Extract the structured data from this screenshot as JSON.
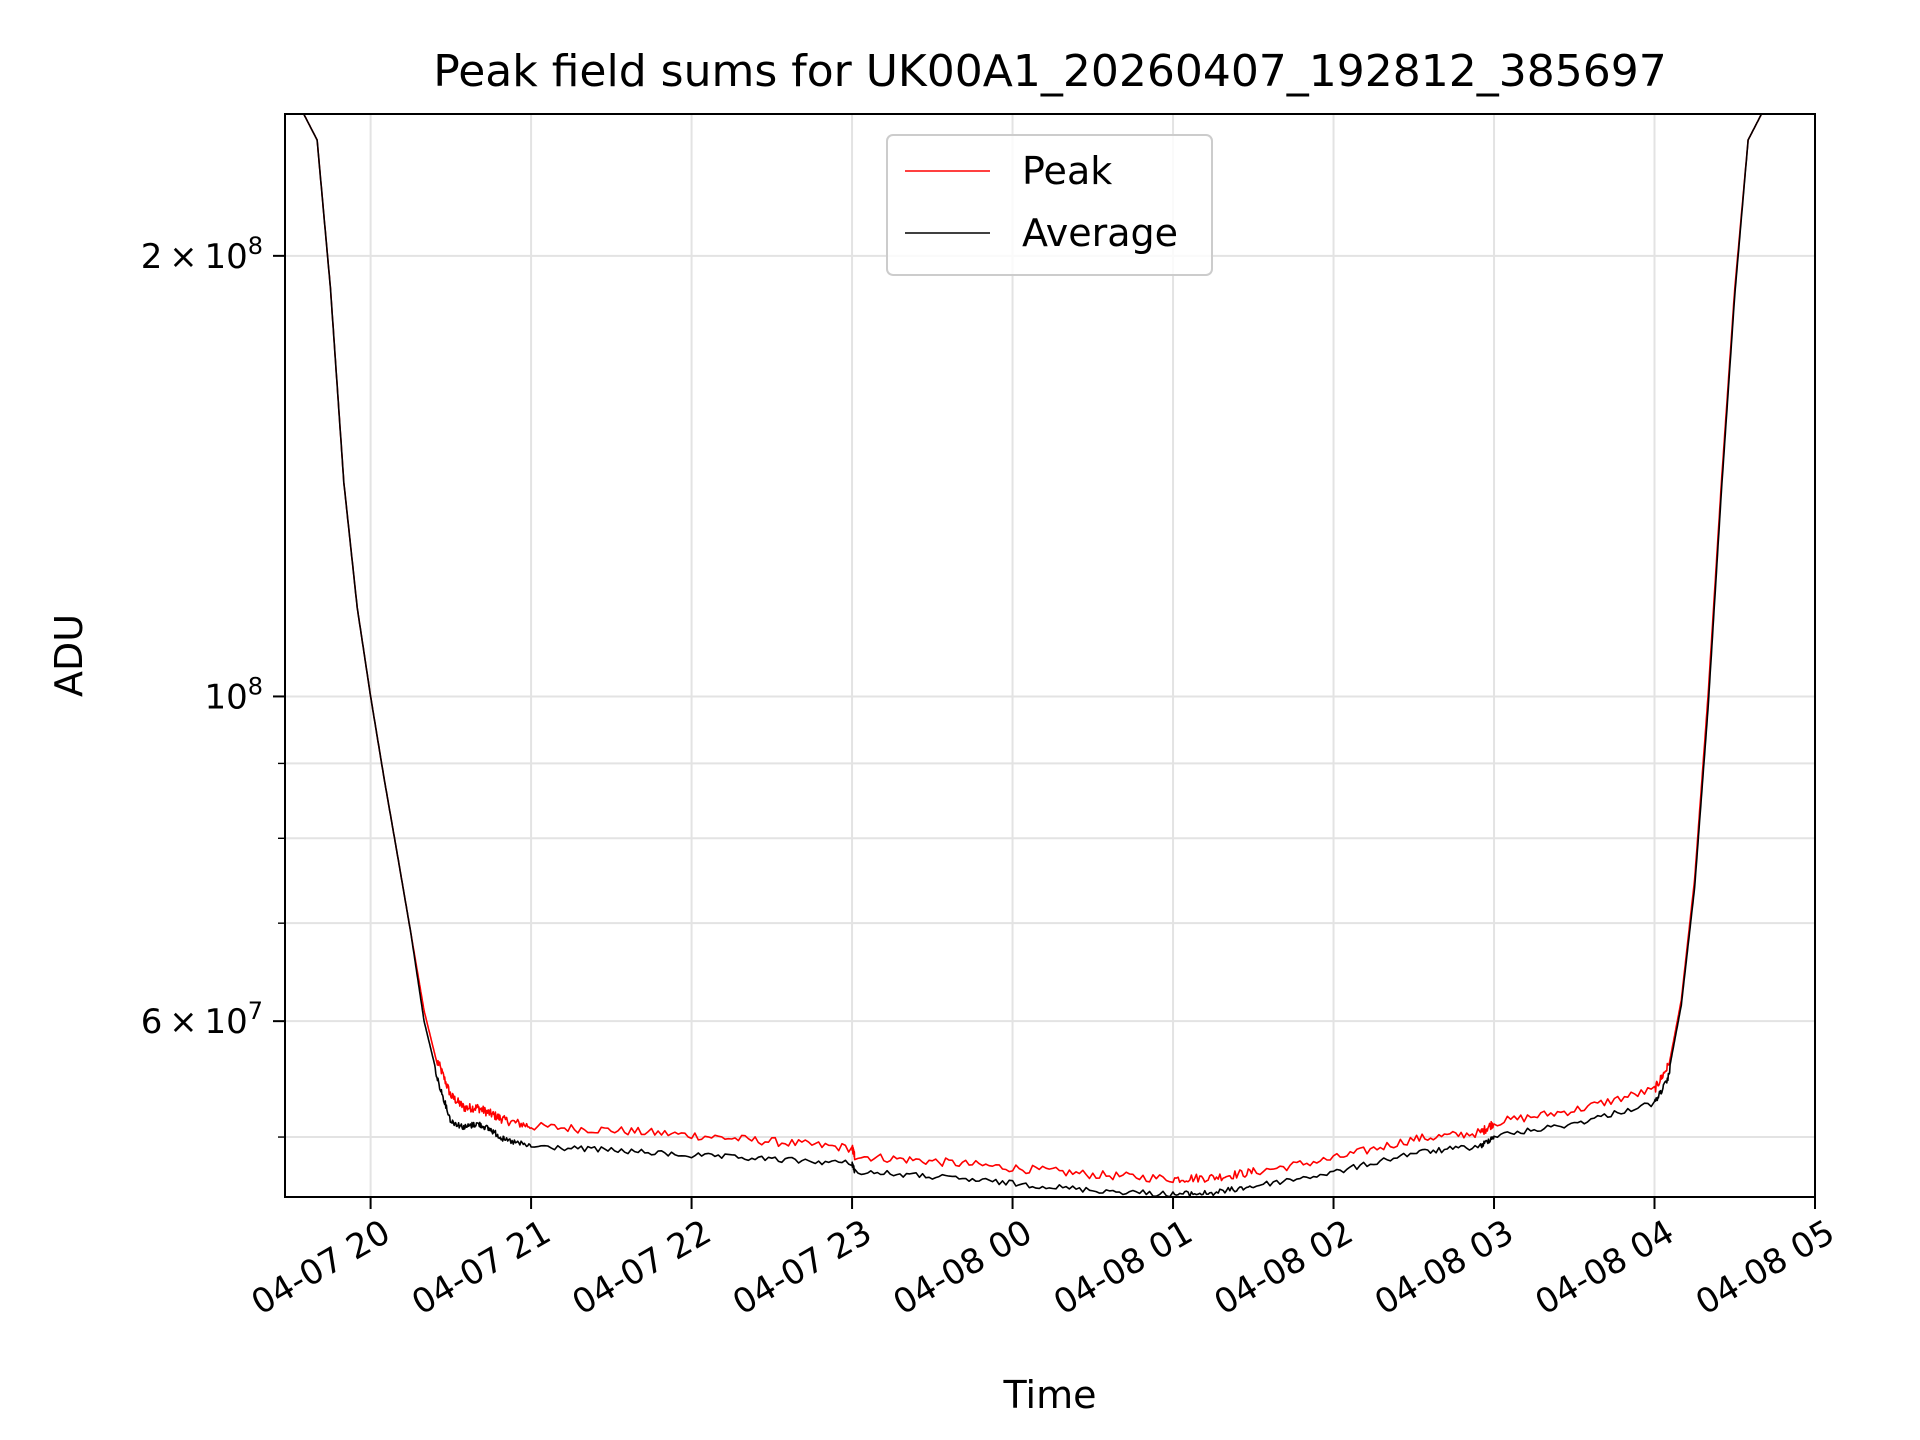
{
  "chart_data": {
    "type": "line",
    "title": "Peak field sums for UK00A1_20260407_192812_385697",
    "xlabel": "Time",
    "ylabel": "ADU",
    "yscale": "log",
    "grid": true,
    "legend_placement": "upper-center",
    "xlim": [
      "2026-04-07 19:28",
      "2026-04-08 05:00"
    ],
    "ylim": [
      45500000,
      250000000
    ],
    "x_ticks": [
      {
        "value": "2026-04-07 20:00",
        "label": "04-07 20"
      },
      {
        "value": "2026-04-07 21:00",
        "label": "04-07 21"
      },
      {
        "value": "2026-04-07 22:00",
        "label": "04-07 22"
      },
      {
        "value": "2026-04-07 23:00",
        "label": "04-07 23"
      },
      {
        "value": "2026-04-08 00:00",
        "label": "04-08 00"
      },
      {
        "value": "2026-04-08 01:00",
        "label": "04-08 01"
      },
      {
        "value": "2026-04-08 02:00",
        "label": "04-08 02"
      },
      {
        "value": "2026-04-08 03:00",
        "label": "04-08 03"
      },
      {
        "value": "2026-04-08 04:00",
        "label": "04-08 04"
      },
      {
        "value": "2026-04-08 05:00",
        "label": "04-08 05"
      }
    ],
    "y_major_ticks": [
      {
        "value": 60000000,
        "base": "6",
        "exp": "7"
      },
      {
        "value": 100000000,
        "base": "",
        "exp": "8"
      },
      {
        "value": 200000000,
        "base": "2",
        "exp": "8"
      }
    ],
    "y_minor_ticks": [
      50000000,
      70000000,
      80000000,
      90000000
    ],
    "series": [
      {
        "name": "Peak",
        "color": "#ff0000",
        "x": [
          "2026-04-07 19:28",
          "2026-04-07 19:35",
          "2026-04-07 19:40",
          "2026-04-07 19:45",
          "2026-04-07 19:50",
          "2026-04-07 19:55",
          "2026-04-07 20:00",
          "2026-04-07 20:05",
          "2026-04-07 20:10",
          "2026-04-07 20:15",
          "2026-04-07 20:20",
          "2026-04-07 20:25",
          "2026-04-07 20:30",
          "2026-04-07 20:35",
          "2026-04-07 20:40",
          "2026-04-07 20:45",
          "2026-04-07 20:50",
          "2026-04-07 21:00",
          "2026-04-07 21:30",
          "2026-04-07 22:00",
          "2026-04-07 22:30",
          "2026-04-07 23:00",
          "2026-04-07 23:01",
          "2026-04-07 23:30",
          "2026-04-08 00:00",
          "2026-04-08 00:30",
          "2026-04-08 01:00",
          "2026-04-08 01:15",
          "2026-04-08 01:30",
          "2026-04-08 02:00",
          "2026-04-08 02:30",
          "2026-04-08 02:55",
          "2026-04-08 03:00",
          "2026-04-08 03:30",
          "2026-04-08 04:00",
          "2026-04-08 04:05",
          "2026-04-08 04:10",
          "2026-04-08 04:15",
          "2026-04-08 04:20",
          "2026-04-08 04:25",
          "2026-04-08 04:30",
          "2026-04-08 04:35",
          "2026-04-08 04:40",
          "2026-04-08 04:45",
          "2026-04-08 04:50",
          "2026-04-08 05:00"
        ],
        "y": [
          250000000,
          250000000,
          240000000,
          190000000,
          140000000,
          115000000,
          100000000,
          88000000,
          78000000,
          69000000,
          61000000,
          56000000,
          53000000,
          52000000,
          52000000,
          51500000,
          51000000,
          50500000,
          50200000,
          49800000,
          49300000,
          48800000,
          48200000,
          47800000,
          47300000,
          46800000,
          46500000,
          46600000,
          47000000,
          48000000,
          49500000,
          50000000,
          50800000,
          51800000,
          53500000,
          55500000,
          62000000,
          75000000,
          100000000,
          140000000,
          190000000,
          240000000,
          250000000,
          250000000,
          250000000,
          250000000
        ]
      },
      {
        "name": "Average",
        "color": "#000000",
        "x": [
          "2026-04-07 19:28",
          "2026-04-07 19:35",
          "2026-04-07 19:40",
          "2026-04-07 19:45",
          "2026-04-07 19:50",
          "2026-04-07 19:55",
          "2026-04-07 20:00",
          "2026-04-07 20:05",
          "2026-04-07 20:10",
          "2026-04-07 20:15",
          "2026-04-07 20:20",
          "2026-04-07 20:25",
          "2026-04-07 20:30",
          "2026-04-07 20:35",
          "2026-04-07 20:40",
          "2026-04-07 20:45",
          "2026-04-07 20:50",
          "2026-04-07 21:00",
          "2026-04-07 21:30",
          "2026-04-07 22:00",
          "2026-04-07 22:30",
          "2026-04-07 23:00",
          "2026-04-07 23:01",
          "2026-04-07 23:30",
          "2026-04-08 00:00",
          "2026-04-08 00:30",
          "2026-04-08 01:00",
          "2026-04-08 01:15",
          "2026-04-08 01:30",
          "2026-04-08 02:00",
          "2026-04-08 02:30",
          "2026-04-08 02:55",
          "2026-04-08 03:00",
          "2026-04-08 03:30",
          "2026-04-08 04:00",
          "2026-04-08 04:05",
          "2026-04-08 04:10",
          "2026-04-08 04:15",
          "2026-04-08 04:20",
          "2026-04-08 04:25",
          "2026-04-08 04:30",
          "2026-04-08 04:35",
          "2026-04-08 04:40",
          "2026-04-08 04:45",
          "2026-04-08 04:50",
          "2026-04-08 05:00"
        ],
        "y": [
          250000000,
          250000000,
          240000000,
          190000000,
          140000000,
          115000000,
          100000000,
          88000000,
          78000000,
          69000000,
          60000000,
          55000000,
          51500000,
          51000000,
          51300000,
          50800000,
          50000000,
          49500000,
          49200000,
          48800000,
          48500000,
          48200000,
          47600000,
          47200000,
          46700000,
          46200000,
          45900000,
          46000000,
          46500000,
          47500000,
          49000000,
          49500000,
          50300000,
          51300000,
          53000000,
          55000000,
          61500000,
          74000000,
          98000000,
          138000000,
          188000000,
          240000000,
          250000000,
          250000000,
          250000000,
          250000000
        ]
      }
    ]
  }
}
